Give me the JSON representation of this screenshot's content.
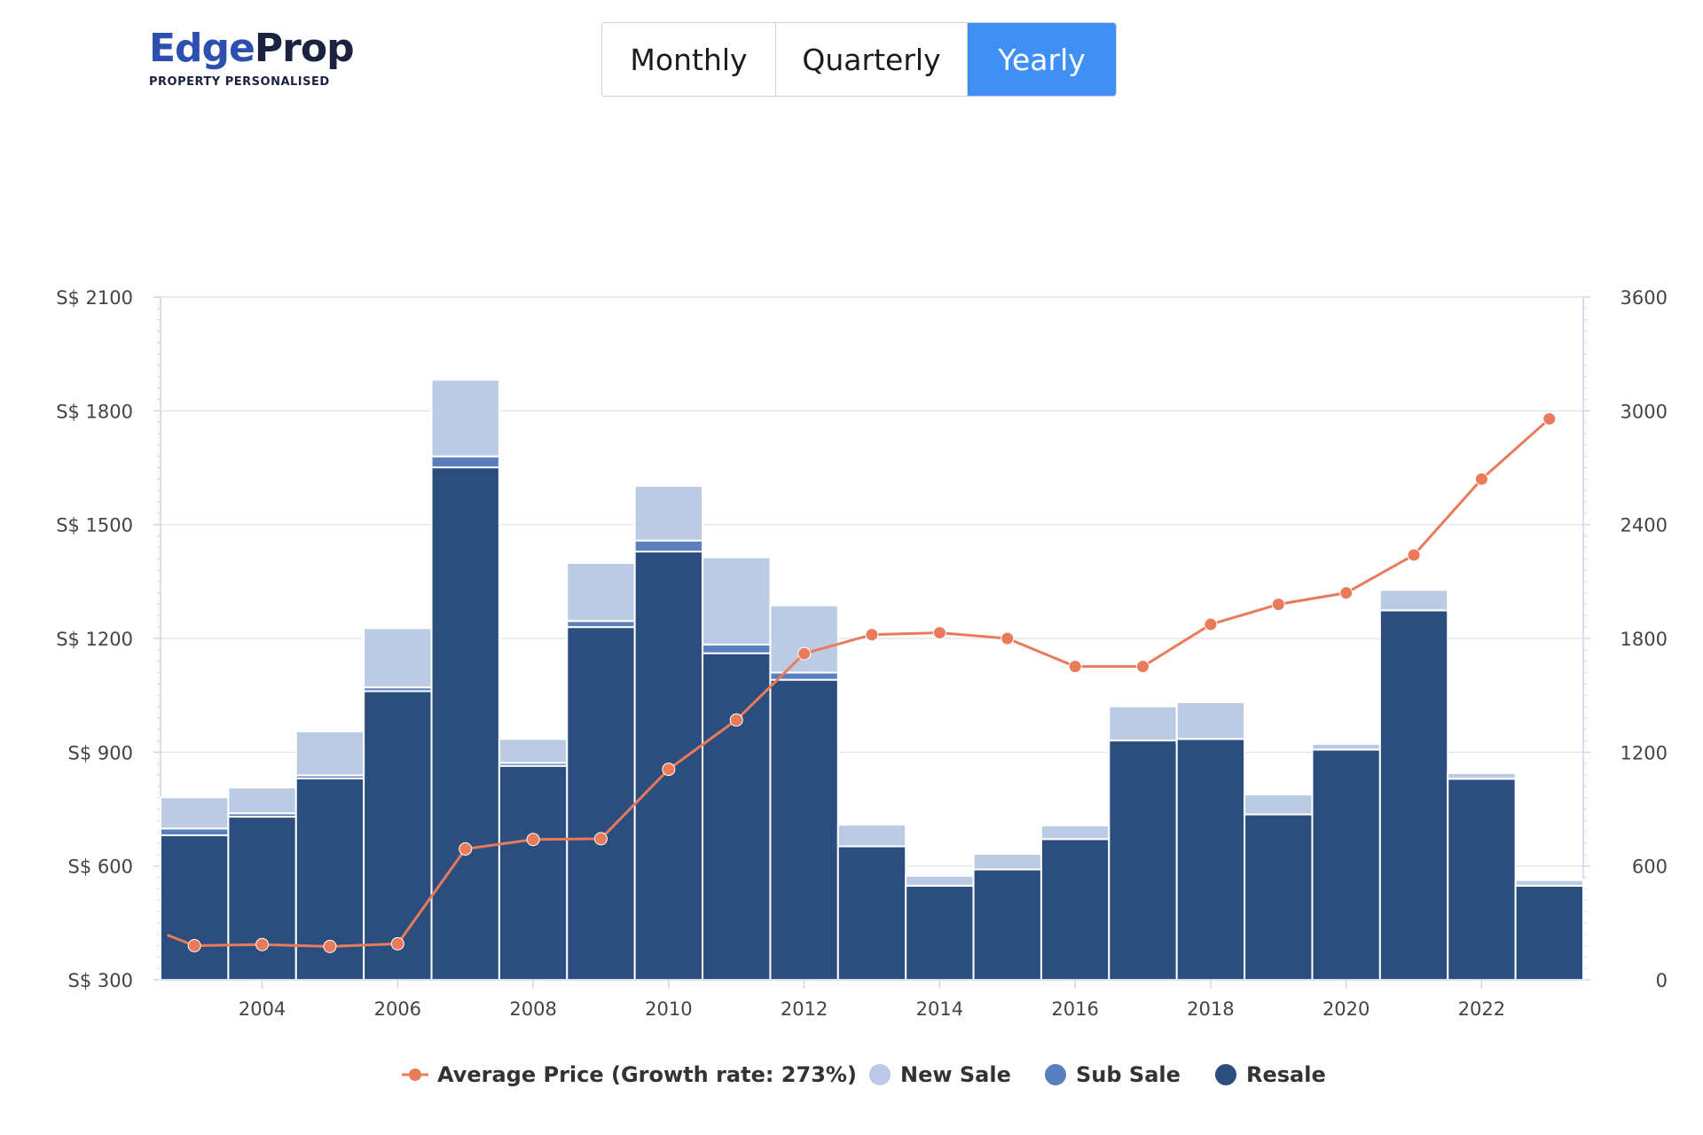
{
  "logo": {
    "name_part1": "Edge",
    "name_part2": "Prop",
    "tagline": "PROPERTY PERSONALISED"
  },
  "toggle": {
    "buttons": [
      {
        "label": "Monthly",
        "active": false
      },
      {
        "label": "Quarterly",
        "active": false
      },
      {
        "label": "Yearly",
        "active": true
      }
    ]
  },
  "colors": {
    "new_sale": "#bccbe4",
    "sub_sale": "#5a7fbf",
    "resale": "#2c4e7e",
    "avg_price": "#e97b5b",
    "active_button": "#3f8ff5"
  },
  "chart_data": {
    "type": "bar",
    "stacked": true,
    "x": [
      2003,
      2004,
      2005,
      2006,
      2007,
      2008,
      2009,
      2010,
      2011,
      2012,
      2013,
      2014,
      2015,
      2016,
      2017,
      2018,
      2019,
      2020,
      2021,
      2022,
      2023
    ],
    "x_ticks": [
      "2004",
      "2006",
      "2008",
      "2010",
      "2012",
      "2014",
      "2016",
      "2018",
      "2020",
      "2022"
    ],
    "x_tick_values": [
      2004,
      2006,
      2008,
      2010,
      2012,
      2014,
      2016,
      2018,
      2020,
      2022
    ],
    "left_axis": {
      "range": [
        300,
        2100
      ],
      "ticks": [
        300,
        600,
        900,
        1200,
        1500,
        1800,
        2100
      ],
      "tick_labels": [
        "S$ 300",
        "S$ 600",
        "S$ 900",
        "S$ 1200",
        "S$ 1500",
        "S$ 1800",
        "S$ 2100"
      ]
    },
    "right_axis": {
      "range": [
        0,
        3600
      ],
      "ticks": [
        0,
        600,
        1200,
        1800,
        2400,
        3000,
        3600
      ],
      "tick_labels": [
        "0",
        "600",
        "1200",
        "1800",
        "2400",
        "3000",
        "3600"
      ]
    },
    "series": [
      {
        "name": "Resale",
        "axis": "right",
        "type": "bar",
        "values": [
          762,
          860,
          1062,
          1522,
          2702,
          1128,
          1860,
          2258,
          1722,
          1582,
          704,
          496,
          582,
          742,
          1262,
          1270,
          872,
          1214,
          1948,
          1060,
          496
        ]
      },
      {
        "name": "Sub Sale",
        "axis": "right",
        "type": "bar",
        "values": [
          36,
          18,
          16,
          20,
          58,
          16,
          32,
          58,
          46,
          38,
          0,
          0,
          0,
          0,
          0,
          0,
          0,
          0,
          0,
          0,
          0
        ]
      },
      {
        "name": "New Sale",
        "axis": "right",
        "type": "bar",
        "values": [
          164,
          136,
          232,
          312,
          404,
          126,
          306,
          288,
          460,
          354,
          114,
          52,
          82,
          72,
          180,
          194,
          106,
          30,
          108,
          30,
          30
        ]
      },
      {
        "name": "Average Price (Growth rate: 273%)",
        "axis": "left",
        "type": "line",
        "values": [
          418,
          390,
          393,
          388,
          395,
          645,
          670,
          672,
          855,
          985,
          1160,
          1210,
          1215,
          1200,
          1126,
          1126,
          1237,
          1290,
          1320,
          1420,
          1620,
          1779
        ],
        "x": [
          2002.6,
          2003,
          2004,
          2005,
          2006,
          2007,
          2008,
          2009,
          2010,
          2011,
          2012,
          2013,
          2014,
          2015,
          2016,
          2017,
          2018,
          2019,
          2020,
          2021,
          2022,
          2023
        ]
      }
    ],
    "legend": {
      "position": "bottom-center",
      "items": [
        {
          "label": "Average Price (Growth rate: 273%)",
          "color": "#e97b5b",
          "marker": "line-dot"
        },
        {
          "label": "New Sale",
          "color": "#bccbe4",
          "marker": "dot"
        },
        {
          "label": "Sub Sale",
          "color": "#5a7fbf",
          "marker": "dot"
        },
        {
          "label": "Resale",
          "color": "#2c4e7e",
          "marker": "dot"
        }
      ]
    },
    "grid": true
  }
}
